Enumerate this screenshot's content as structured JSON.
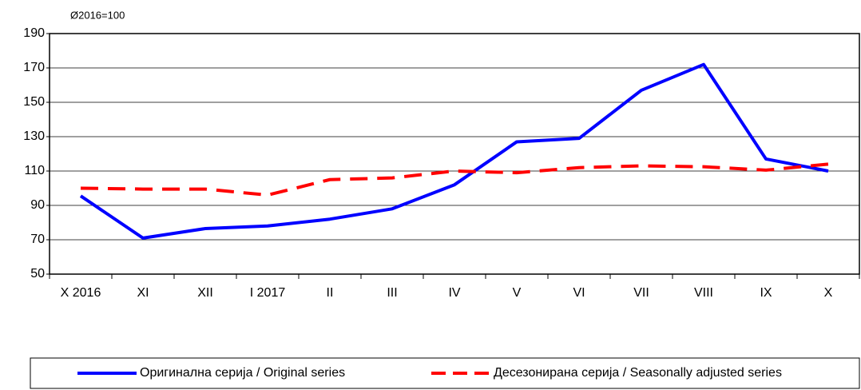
{
  "chart_data": {
    "type": "line",
    "y_unit_label": "Ø2016=100",
    "categories": [
      "X 2016",
      "XI",
      "XII",
      "I 2017",
      "II",
      "III",
      "IV",
      "V",
      "VI",
      "VII",
      "VIII",
      "IX",
      "X"
    ],
    "series": [
      {
        "name": "Оригинална серија / Original series",
        "color": "#0000ff",
        "dash": false,
        "values": [
          95.5,
          71,
          76.5,
          78,
          82,
          88,
          102,
          127,
          129,
          157,
          172,
          117,
          110
        ]
      },
      {
        "name": "Десезонирана серија / Seasonally adjusted series",
        "color": "#ff0000",
        "dash": true,
        "values": [
          100,
          99.5,
          99.5,
          96,
          105,
          106,
          110,
          109,
          112,
          113,
          112.5,
          110.5,
          114
        ]
      }
    ],
    "ylim": [
      50,
      190
    ],
    "yticks": [
      50,
      70,
      90,
      110,
      130,
      150,
      170,
      190
    ],
    "grid": true
  }
}
